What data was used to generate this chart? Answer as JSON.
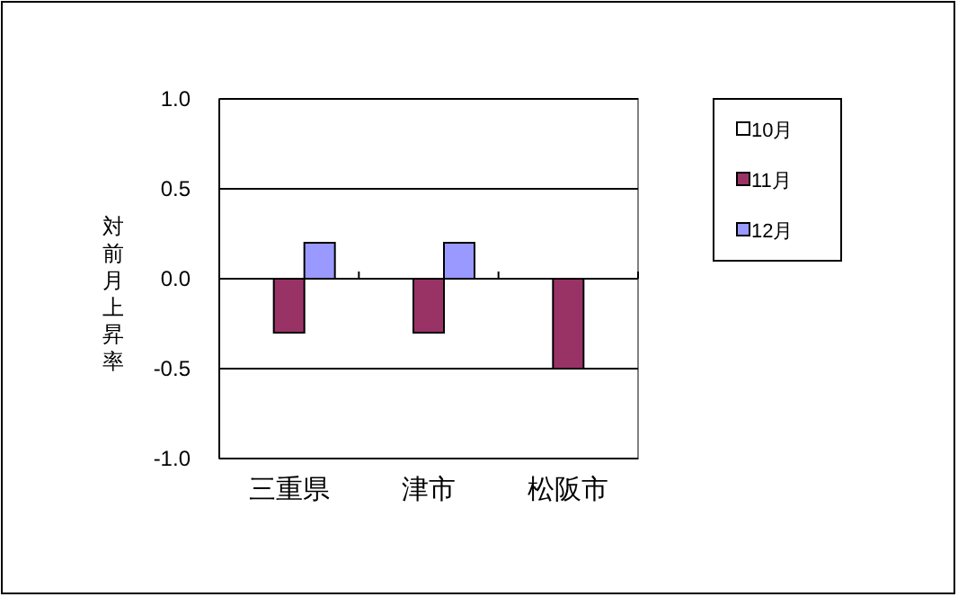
{
  "chart_data": {
    "type": "bar",
    "ylabel": "対前月上昇率",
    "categories": [
      "三重県",
      "津市",
      "松阪市"
    ],
    "series": [
      {
        "name": "10月",
        "color": "#ffffff",
        "values": [
          0,
          0,
          0
        ]
      },
      {
        "name": "11月",
        "color": "#993366",
        "values": [
          -0.3,
          -0.3,
          -0.5
        ]
      },
      {
        "name": "12月",
        "color": "#9999ff",
        "values": [
          0.2,
          0.2,
          0
        ]
      }
    ],
    "ylim": [
      -1,
      1
    ],
    "yticks": [
      {
        "value": 1,
        "label": "1.0"
      },
      {
        "value": 0.5,
        "label": "0.5"
      },
      {
        "value": 0,
        "label": "0.0"
      },
      {
        "value": -0.5,
        "label": "-0.5"
      },
      {
        "value": -1,
        "label": "-1.0"
      }
    ],
    "grid": "y",
    "legend": "right"
  }
}
